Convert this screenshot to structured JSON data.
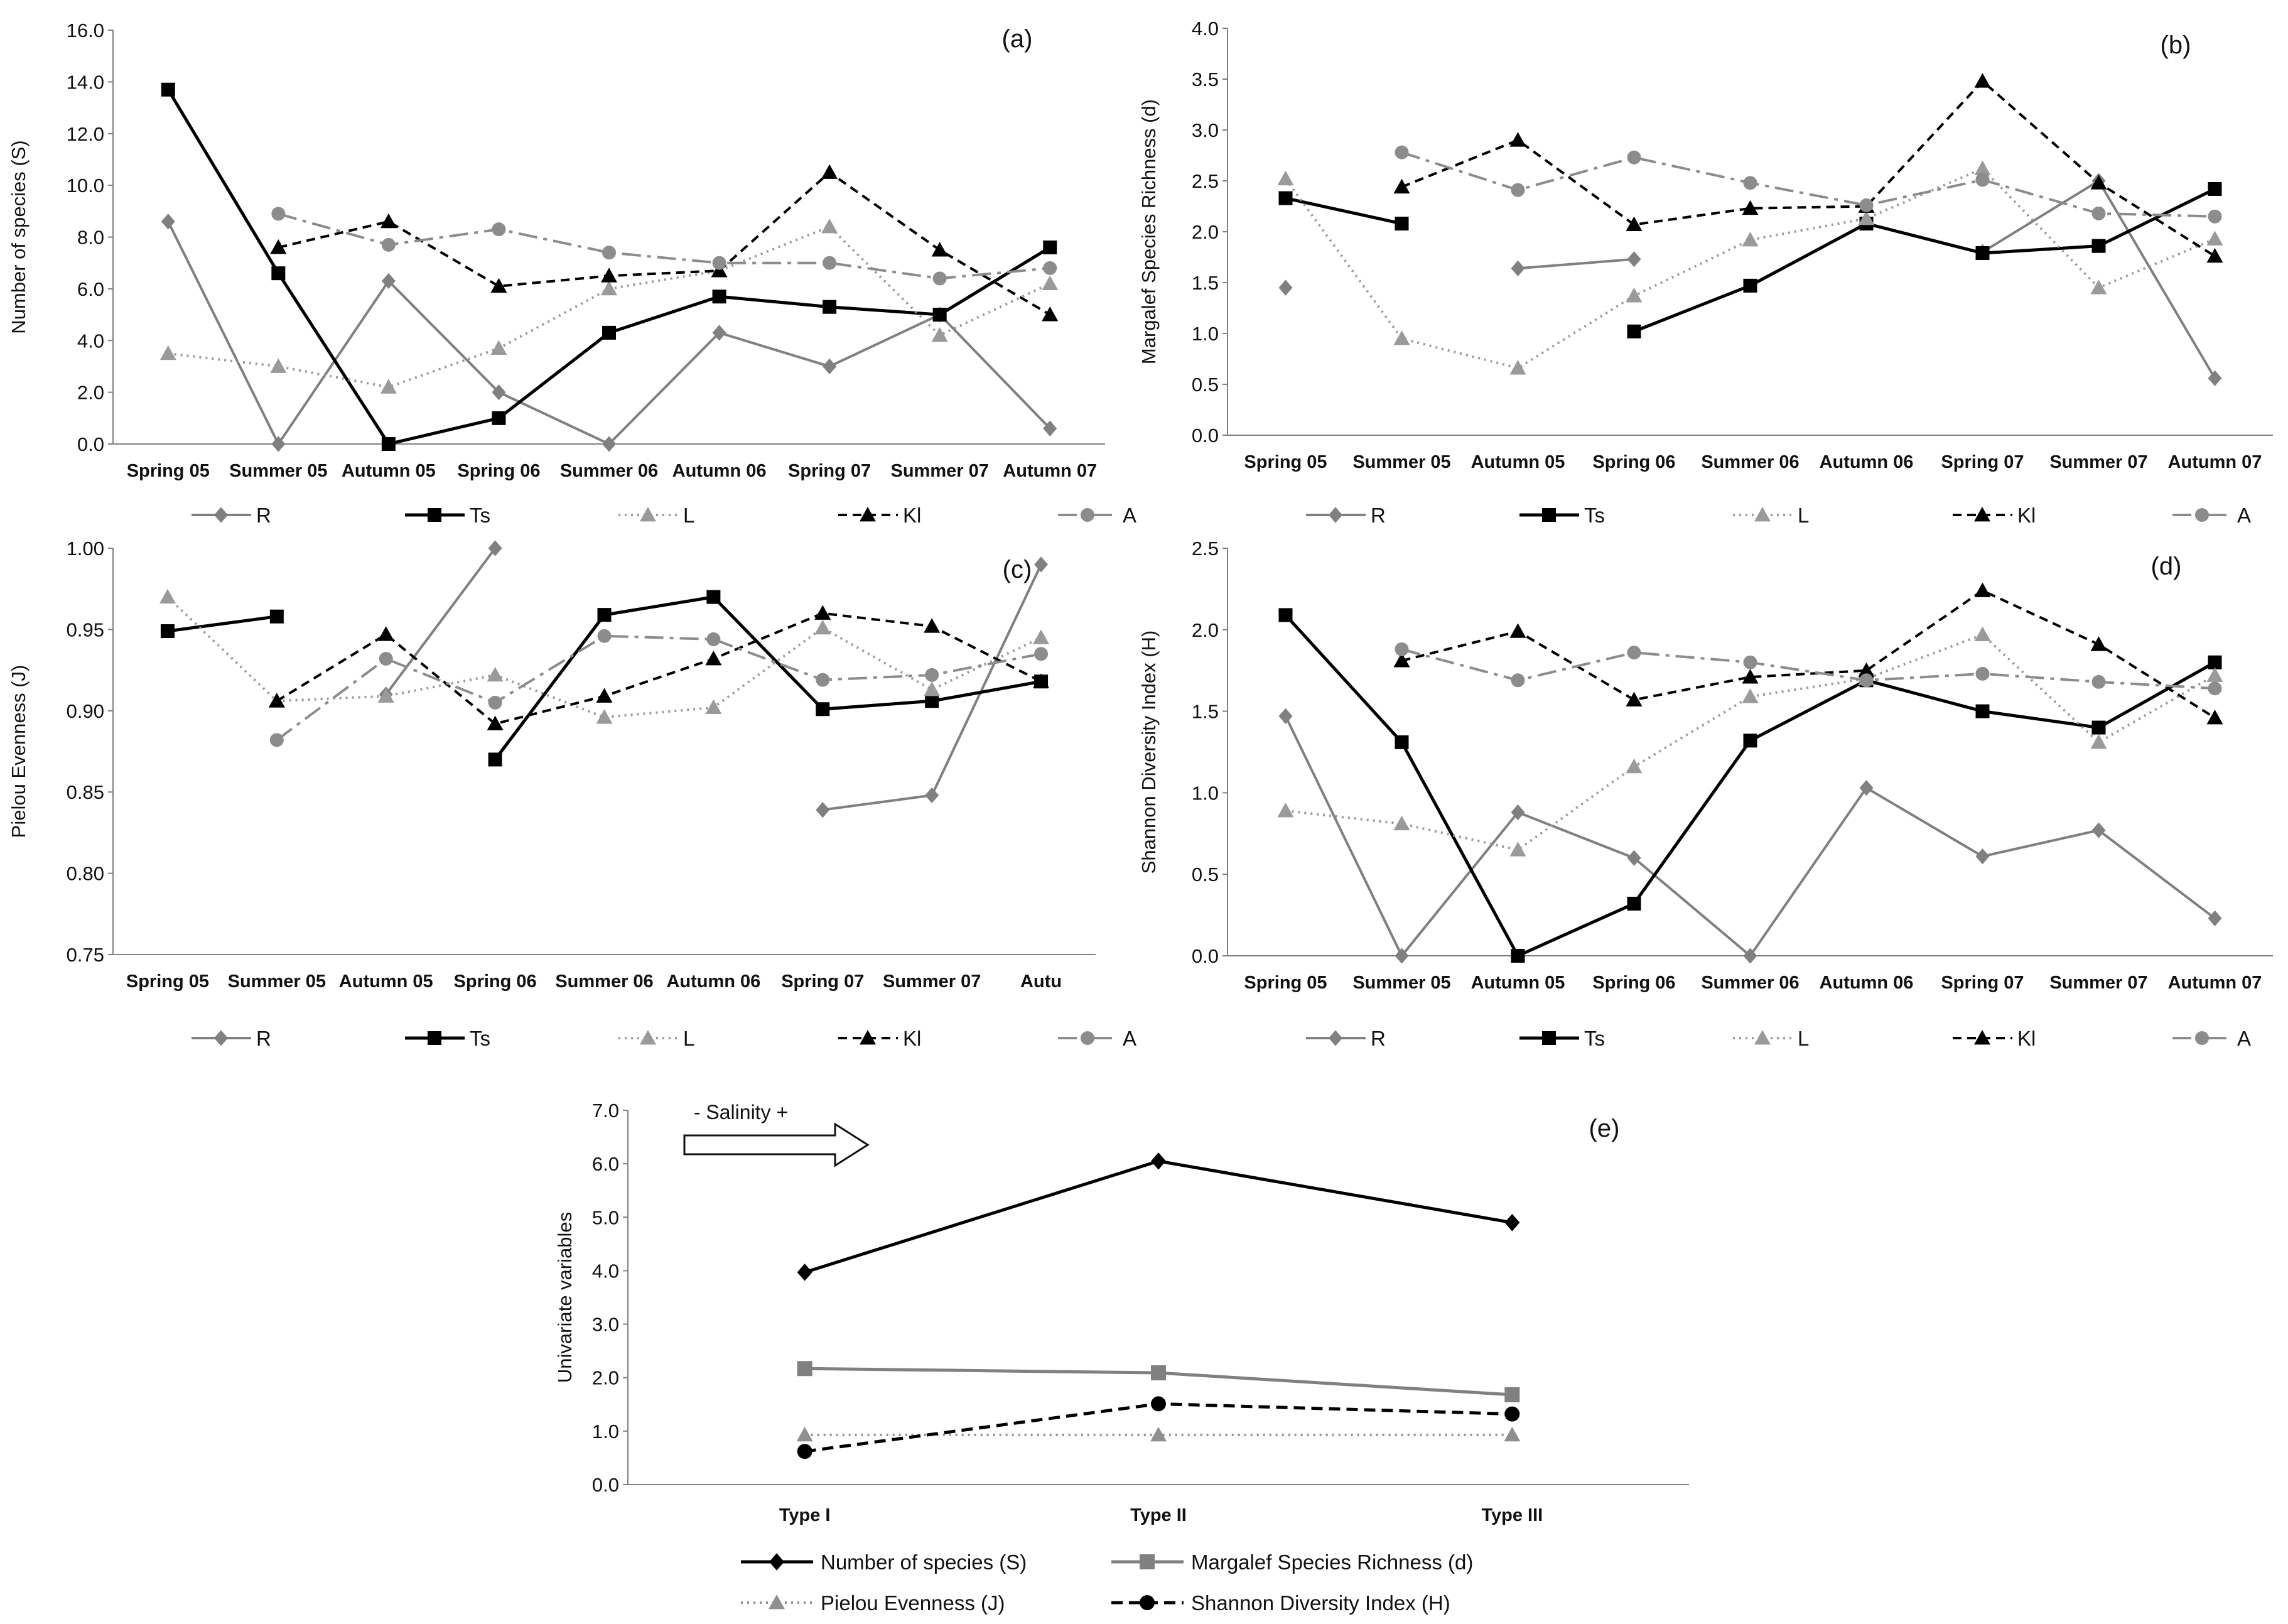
{
  "chart_data": [
    {
      "id": "a",
      "type": "line",
      "panel_label": "(a)",
      "title": "",
      "xlabel": "",
      "ylabel": "Number of species (S)",
      "ylim": [
        0,
        16
      ],
      "yticks": [
        "0.0",
        "2.0",
        "4.0",
        "6.0",
        "8.0",
        "10.0",
        "12.0",
        "14.0",
        "16.0"
      ],
      "ytick_values": [
        0,
        2,
        4,
        6,
        8,
        10,
        12,
        14,
        16
      ],
      "categories": [
        "Spring 05",
        "Summer 05",
        "Autumn 05",
        "Spring 06",
        "Summer 06",
        "Autumn 06",
        "Spring 07",
        "Summer 07",
        "Autumn 07"
      ],
      "legend_position": "bottom",
      "series": [
        {
          "name": "R",
          "values": [
            8.6,
            0.0,
            6.3,
            2.0,
            0.0,
            4.3,
            3.0,
            5.0,
            0.6
          ]
        },
        {
          "name": "Ts",
          "values": [
            13.7,
            6.6,
            0.0,
            1.0,
            4.3,
            5.7,
            5.3,
            5.0,
            7.6
          ]
        },
        {
          "name": "L",
          "values": [
            3.5,
            3.0,
            2.2,
            3.7,
            6.0,
            6.7,
            8.4,
            4.2,
            6.2
          ]
        },
        {
          "name": "Kl",
          "values": [
            null,
            7.6,
            8.6,
            6.1,
            6.5,
            6.7,
            10.5,
            7.5,
            5.0
          ]
        },
        {
          "name": "A",
          "values": [
            null,
            8.9,
            7.7,
            8.3,
            7.4,
            7.0,
            7.0,
            6.4,
            6.8
          ]
        }
      ]
    },
    {
      "id": "b",
      "type": "line",
      "panel_label": "(b)",
      "title": "",
      "xlabel": "",
      "ylabel": "Margalef Species Richness (d)",
      "ylim": [
        0,
        4
      ],
      "yticks": [
        "0.0",
        "0.5",
        "1.0",
        "1.5",
        "2.0",
        "2.5",
        "3.0",
        "3.5",
        "4.0"
      ],
      "ytick_values": [
        0,
        0.5,
        1,
        1.5,
        2,
        2.5,
        3,
        3.5,
        4
      ],
      "categories": [
        "Spring 05",
        "Summer 05",
        "Autumn 05",
        "Spring 06",
        "Summer 06",
        "Autumn 06",
        "Spring 07",
        "Summer 07",
        "Autumn 07"
      ],
      "legend_position": "bottom",
      "series": [
        {
          "name": "R",
          "values": [
            1.45,
            null,
            1.64,
            1.73,
            null,
            null,
            1.8,
            2.5,
            0.56
          ]
        },
        {
          "name": "Ts",
          "values": [
            2.33,
            2.08,
            null,
            1.02,
            1.47,
            2.08,
            1.79,
            1.86,
            2.42
          ]
        },
        {
          "name": "L",
          "values": [
            2.52,
            0.95,
            0.66,
            1.37,
            1.92,
            2.13,
            2.62,
            1.45,
            1.93
          ]
        },
        {
          "name": "Kl",
          "values": [
            null,
            2.44,
            2.9,
            2.07,
            2.23,
            2.25,
            3.48,
            2.48,
            1.76
          ]
        },
        {
          "name": "A",
          "values": [
            null,
            2.78,
            2.41,
            2.73,
            2.48,
            2.26,
            2.51,
            2.18,
            2.15
          ]
        }
      ]
    },
    {
      "id": "c",
      "type": "line",
      "panel_label": "(c)",
      "title": "",
      "xlabel": "",
      "ylabel": "Pielou Evenness (J)",
      "ylim": [
        0.75,
        1.0
      ],
      "yticks": [
        "0.75",
        "0.80",
        "0.85",
        "0.90",
        "0.95",
        "1.00"
      ],
      "ytick_values": [
        0.75,
        0.8,
        0.85,
        0.9,
        0.95,
        1.0
      ],
      "categories": [
        "Spring 05",
        "Summer 05",
        "Autumn 05",
        "Spring 06",
        "Summer 06",
        "Autumn 06",
        "Spring 07",
        "Summer 07",
        "Autu"
      ],
      "legend_position": "bottom",
      "series": [
        {
          "name": "R",
          "values": [
            null,
            null,
            0.91,
            1.0,
            null,
            null,
            0.839,
            0.848,
            0.99
          ]
        },
        {
          "name": "Ts",
          "values": [
            0.949,
            0.958,
            null,
            0.87,
            0.959,
            0.97,
            0.901,
            0.906,
            0.918
          ]
        },
        {
          "name": "L",
          "values": [
            0.97,
            0.906,
            0.909,
            0.922,
            0.896,
            0.902,
            0.951,
            0.913,
            0.945
          ]
        },
        {
          "name": "Kl",
          "values": [
            null,
            0.906,
            0.947,
            0.892,
            0.909,
            0.932,
            0.96,
            0.952,
            0.918
          ]
        },
        {
          "name": "A",
          "values": [
            null,
            0.882,
            0.932,
            0.905,
            0.946,
            0.944,
            0.919,
            0.922,
            0.935
          ]
        }
      ]
    },
    {
      "id": "d",
      "type": "line",
      "panel_label": "(d)",
      "title": "",
      "xlabel": "",
      "ylabel": "Shannon Diversity Index (H)",
      "ylim": [
        0,
        2.5
      ],
      "yticks": [
        "0.0",
        "0.5",
        "1.0",
        "1.5",
        "2.0",
        "2.5"
      ],
      "ytick_values": [
        0,
        0.5,
        1,
        1.5,
        2,
        2.5
      ],
      "categories": [
        "Spring 05",
        "Summer 05",
        "Autumn 05",
        "Spring 06",
        "Summer 06",
        "Autumn 06",
        "Spring 07",
        "Summer 07",
        "Autumn 07"
      ],
      "legend_position": "bottom",
      "series": [
        {
          "name": "R",
          "values": [
            1.47,
            0.0,
            0.88,
            0.6,
            0.0,
            1.03,
            0.61,
            0.77,
            0.23
          ]
        },
        {
          "name": "Ts",
          "values": [
            2.09,
            1.31,
            0.0,
            0.32,
            1.32,
            1.69,
            1.5,
            1.4,
            1.8
          ]
        },
        {
          "name": "L",
          "values": [
            0.89,
            0.81,
            0.65,
            1.16,
            1.59,
            1.7,
            1.97,
            1.31,
            1.72
          ]
        },
        {
          "name": "Kl",
          "values": [
            null,
            1.81,
            1.99,
            1.57,
            1.71,
            1.75,
            2.24,
            1.91,
            1.46
          ]
        },
        {
          "name": "A",
          "values": [
            null,
            1.88,
            1.69,
            1.86,
            1.8,
            1.69,
            1.73,
            1.68,
            1.64
          ]
        }
      ]
    },
    {
      "id": "e",
      "type": "line",
      "panel_label": "(e)",
      "title": "",
      "xlabel": "",
      "ylabel": "Univariate variables",
      "ylim": [
        0,
        7
      ],
      "yticks": [
        "0.0",
        "1.0",
        "2.0",
        "3.0",
        "4.0",
        "5.0",
        "6.0",
        "7.0"
      ],
      "ytick_values": [
        0,
        1,
        2,
        3,
        4,
        5,
        6,
        7
      ],
      "categories": [
        "Type I",
        "Type II",
        "Type III"
      ],
      "annotation": "- Salinity +",
      "legend_position": "bottom",
      "series": [
        {
          "name": "Number of species (S)",
          "values": [
            3.97,
            6.05,
            4.9
          ]
        },
        {
          "name": "Margalef Species Richness (d)",
          "values": [
            2.17,
            2.09,
            1.68
          ]
        },
        {
          "name": "Pielou Evenness (J)",
          "values": [
            0.93,
            0.93,
            0.93
          ]
        },
        {
          "name": "Shannon Diversity Index (H)",
          "values": [
            0.62,
            1.51,
            1.32
          ]
        }
      ]
    }
  ]
}
